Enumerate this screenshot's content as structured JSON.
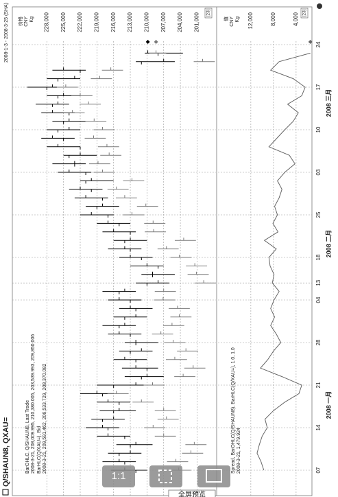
{
  "header": {
    "title": "Q/SHAUN8, QXAU=",
    "date_range": "2008-1-3 - 2008-3-25 (SHA)"
  },
  "toolbar": {
    "buttons": [
      "1:1"
    ],
    "tooltip": "全屏预览"
  },
  "chart_data": [
    {
      "type": "ohlc",
      "axis_header": [
        "价格",
        "CNY",
        "Kg"
      ],
      "badge": "[23]",
      "categories": [
        "07",
        null,
        null,
        null,
        null,
        "14",
        null,
        null,
        null,
        null,
        "21",
        null,
        null,
        null,
        null,
        "28",
        null,
        null,
        null,
        null,
        "04",
        null,
        "13",
        null,
        null,
        "18",
        null,
        null,
        null,
        null,
        "25",
        null,
        null,
        null,
        null,
        "03",
        null,
        null,
        null,
        null,
        "10",
        null,
        null,
        null,
        null,
        "17",
        null,
        null,
        null,
        null,
        "24",
        null
      ],
      "ylim": [
        197600,
        234200
      ],
      "yticks": [
        {
          "value": 228000,
          "label": "228,000"
        },
        {
          "value": 225000,
          "label": "225,000"
        },
        {
          "value": 222000,
          "label": "222,000"
        },
        {
          "value": 219000,
          "label": "219,000"
        },
        {
          "value": 216000,
          "label": "216,000"
        },
        {
          "value": 213000,
          "label": "213,000"
        },
        {
          "value": 210000,
          "label": "210,000"
        },
        {
          "value": 207000,
          "label": "207,000"
        },
        {
          "value": 204000,
          "label": "204,000"
        },
        {
          "value": 201000,
          "label": "201,000"
        }
      ],
      "grid": true,
      "series": [
        {
          "name": "BarOHLC, Q/SHAUN8, Last Trade",
          "readout": "2008-3-21, 208,009.995, 210,380.005, 203,539.993, 209,850.006",
          "color": "#000000",
          "open": [
            212000,
            214000,
            215000,
            213000,
            214000,
            217000,
            218000,
            216000,
            215000,
            218000,
            216000,
            211000,
            210000,
            212000,
            213000,
            212000,
            213000,
            215000,
            214000,
            212000,
            213000,
            215000,
            210000,
            209000,
            208000,
            211000,
            213000,
            214000,
            213000,
            215000,
            217000,
            219000,
            218000,
            220000,
            221000,
            221000,
            223000,
            224000,
            222000,
            225000,
            226000,
            225000,
            224000,
            227000,
            226000,
            228000,
            226000,
            222000,
            211000,
            208009.995,
            null,
            null
          ],
          "high": [
            216500,
            218000,
            217000,
            215500,
            219000,
            221000,
            220000,
            218500,
            219000,
            222000,
            219000,
            214000,
            214500,
            216000,
            215000,
            214000,
            217000,
            218000,
            216000,
            215000,
            217000,
            218000,
            212000,
            211000,
            213000,
            215000,
            217000,
            216000,
            218000,
            219000,
            222000,
            221000,
            223000,
            224000,
            222000,
            226000,
            227000,
            225000,
            228000,
            229000,
            228000,
            227000,
            229000,
            230000,
            228000,
            231500,
            228000,
            227000,
            212000,
            210380.005,
            null,
            null
          ],
          "low": [
            210000,
            212000,
            211000,
            209000,
            213000,
            215000,
            214000,
            212000,
            213000,
            216000,
            210000,
            207000,
            208000,
            210000,
            209000,
            208000,
            211000,
            212000,
            210000,
            209000,
            211000,
            212000,
            206000,
            205000,
            207000,
            209000,
            211000,
            210000,
            212000,
            213000,
            216000,
            215000,
            217000,
            218000,
            216000,
            220000,
            221000,
            219000,
            222000,
            223000,
            222000,
            221000,
            223000,
            224000,
            222000,
            226000,
            222000,
            221000,
            205000,
            203539.993,
            null,
            null
          ],
          "close": [
            214000,
            215000,
            213000,
            212000,
            217000,
            218000,
            216000,
            215000,
            217000,
            219000,
            212000,
            210000,
            212000,
            214000,
            211000,
            212000,
            215000,
            214000,
            212000,
            213000,
            215000,
            214000,
            208000,
            209000,
            210000,
            213000,
            214000,
            213000,
            216000,
            217000,
            220000,
            218000,
            221000,
            222000,
            220000,
            224000,
            223000,
            222000,
            226000,
            227000,
            224000,
            224000,
            227000,
            226000,
            225000,
            227000,
            223000,
            225000,
            207000,
            209850.006,
            null,
            null
          ]
        },
        {
          "name": "BarHLC(Q/XAU=), Bid",
          "readout": "2008-3-21, 209,591.462, 206,533.729, 208,370.082",
          "color": "#7a7a7a",
          "high": [
            205900,
            206400,
            203700,
            203100,
            208600,
            210500,
            208100,
            208600,
            212600,
            217100,
            210600,
            205100,
            203300,
            206600,
            204600,
            206900,
            209100,
            207100,
            205800,
            206100,
            208700,
            208600,
            201400,
            202700,
            203000,
            205800,
            208100,
            205000,
            210400,
            210500,
            214300,
            211800,
            215600,
            217100,
            214300,
            219600,
            220400,
            218400,
            218800,
            221200,
            219600,
            221100,
            225000,
            222100,
            223600,
            226200,
            220100,
            218100,
            201600,
            209591.462,
            null,
            null
          ],
          "low": [
            202100,
            202600,
            199900,
            199300,
            204800,
            206700,
            204300,
            204800,
            208800,
            213300,
            206800,
            201300,
            199500,
            202800,
            200800,
            203100,
            205300,
            203300,
            202000,
            202300,
            204900,
            204800,
            197600,
            198900,
            199200,
            202000,
            204300,
            201200,
            206600,
            206700,
            210500,
            208000,
            211800,
            213300,
            210500,
            215800,
            216600,
            214600,
            215000,
            217400,
            215800,
            217300,
            221200,
            218300,
            219800,
            222400,
            216300,
            214300,
            197800,
            206533.729,
            null,
            null
          ],
          "close": [
            204300,
            204800,
            202100,
            201500,
            207000,
            208900,
            206500,
            207000,
            211000,
            215500,
            209000,
            203500,
            201700,
            205000,
            203000,
            205300,
            207500,
            205500,
            204200,
            204500,
            207100,
            207000,
            199800,
            201100,
            201400,
            204200,
            206500,
            203400,
            208800,
            208900,
            212700,
            210200,
            214000,
            215500,
            212700,
            218000,
            218800,
            216800,
            217200,
            219600,
            218000,
            219500,
            223400,
            220500,
            222000,
            224600,
            218500,
            216500,
            200000,
            208370.082,
            null,
            null
          ]
        }
      ]
    },
    {
      "type": "line",
      "axis_header": [
        "值",
        "CNY",
        "Kg"
      ],
      "badge": "[23]",
      "categories": [
        "07",
        null,
        null,
        null,
        null,
        "14",
        null,
        null,
        null,
        null,
        "21",
        null,
        null,
        null,
        null,
        "28",
        null,
        null,
        null,
        null,
        "04",
        null,
        "13",
        null,
        null,
        "18",
        null,
        null,
        null,
        null,
        "25",
        null,
        null,
        null,
        null,
        "03",
        null,
        null,
        null,
        null,
        "10",
        null,
        null,
        null,
        null,
        "17",
        null,
        null,
        null,
        null,
        "24",
        null
      ],
      "x_group_labels": [
        "2008 一月",
        "2008 二月",
        "2008 三月"
      ],
      "ylim": [
        1200,
        17800
      ],
      "yticks": [
        {
          "value": 12000,
          "label": "12,000"
        },
        {
          "value": 8000,
          "label": "8,000"
        },
        {
          "value": 4000,
          "label": "4,000"
        }
      ],
      "series": [
        {
          "name": "Spread, BarOHLC(Q/SHAUN8), BarHLC(Q/XAU=), 1.0, 1.0",
          "readout": "2008-3-21, 1,479.924",
          "color": "#666666",
          "values": [
            9700,
            10200,
            10900,
            10500,
            10000,
            9100,
            9500,
            8000,
            6000,
            3500,
            3000,
            6500,
            10300,
            9000,
            8000,
            6700,
            7500,
            8500,
            7800,
            8500,
            7900,
            7000,
            8200,
            7900,
            8600,
            8800,
            7500,
            9600,
            7200,
            8100,
            7300,
            7800,
            7000,
            6500,
            7300,
            6000,
            4200,
            5200,
            8800,
            7400,
            6000,
            4500,
            3600,
            5500,
            3000,
            2400,
            4500,
            8500,
            7000,
            1479.924,
            null,
            null
          ]
        }
      ]
    }
  ]
}
